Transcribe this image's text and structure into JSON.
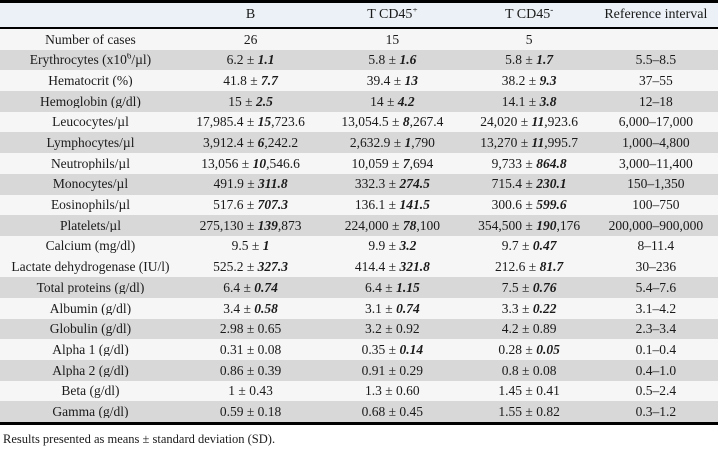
{
  "colors": {
    "header_bg": "#ebf1f6",
    "shaded_row": "#d8d8d8",
    "light_row": "#f6f6f6",
    "rule": "#000000",
    "text": "#1a1a1a"
  },
  "table": {
    "columns": [
      "",
      "B",
      "T CD45^{+}",
      "T CD45^{-}",
      "Reference interval"
    ],
    "rows": [
      {
        "label": "Number of cases",
        "b": "26",
        "t_pos": "15",
        "t_neg": "5",
        "ref": "",
        "shaded": false
      },
      {
        "label": "Erythrocytes (x10^{6}/µl)",
        "b": "6.2 ± *1.1*",
        "t_pos": "5.8 ± *1.6*",
        "t_neg": "5.8 ± *1.7*",
        "ref": "5.5–8.5",
        "shaded": true
      },
      {
        "label": "Hematocrit (%)",
        "b": "41.8 ± *7.7*",
        "t_pos": "39.4 ± *13*",
        "t_neg": "38.2 ± *9.3*",
        "ref": "37–55",
        "shaded": false
      },
      {
        "label": "Hemoglobin (g/dl)",
        "b": "15 ± *2.5*",
        "t_pos": "14 ± *4.2*",
        "t_neg": "14.1 ± *3.8*",
        "ref": "12–18",
        "shaded": true
      },
      {
        "label": "Leucocytes/µl",
        "b": "17,985.4 ± *15*,723.6",
        "t_pos": "13,054.5 ± *8*,267.4",
        "t_neg": "24,020 ± *11*,923.6",
        "ref": "6,000–17,000",
        "shaded": false
      },
      {
        "label": "Lymphocytes/µl",
        "b": "3,912.4 ± *6*,242.2",
        "t_pos": "2,632.9 ± *1*,790",
        "t_neg": "13,270 ± *11*,995.7",
        "ref": "1,000–4,800",
        "shaded": true
      },
      {
        "label": "Neutrophils/µl",
        "b": "13,056 ± *10*,546.6",
        "t_pos": "10,059 ± *7*,694",
        "t_neg": "9,733 ± *864.8*",
        "ref": "3,000–11,400",
        "shaded": false
      },
      {
        "label": "Monocytes/µl",
        "b": "491.9 ± *311.8*",
        "t_pos": "332.3 ± *274.5*",
        "t_neg": "715.4 ± *230.1*",
        "ref": "150–1,350",
        "shaded": true
      },
      {
        "label": "Eosinophils/µl",
        "b": "517.6 ± *707.3*",
        "t_pos": "136.1 ± *141.5*",
        "t_neg": "300.6 ± *599.6*",
        "ref": "100–750",
        "shaded": false
      },
      {
        "label": "Platelets/µl",
        "b": "275,130 ± *139*,873",
        "t_pos": "224,000 ± *78*,100",
        "t_neg": "354,500 ± *190*,176",
        "ref": "200,000–900,000",
        "shaded": true
      },
      {
        "label": "Calcium (mg/dl)",
        "b": "9.5 ± *1*",
        "t_pos": "9.9 ± *3.2*",
        "t_neg": "9.7 ± *0.47*",
        "ref": "8–11.4",
        "shaded": false
      },
      {
        "label": "Lactate dehydrogenase (IU/l)",
        "b": "525.2 ± *327.3*",
        "t_pos": "414.4 ± *321.8*",
        "t_neg": "212.6 ± *81.7*",
        "ref": "30–236",
        "shaded": false
      },
      {
        "label": "Total proteins (g/dl)",
        "b": "6.4 ± *0.74*",
        "t_pos": "6.4 ± *1.15*",
        "t_neg": "7.5 ± *0.76*",
        "ref": "5.4–7.6",
        "shaded": true
      },
      {
        "label": "Albumin (g/dl)",
        "b": "3.4 ± *0.58*",
        "t_pos": "3.1 ± *0.74*",
        "t_neg": "3.3 ± *0.22*",
        "ref": "3.1–4.2",
        "shaded": false
      },
      {
        "label": "Globulin (g/dl)",
        "b": "2.98 ± 0.65",
        "t_pos": "3.2 ± 0.92",
        "t_neg": "4.2 ± 0.89",
        "ref": "2.3–3.4",
        "shaded": true
      },
      {
        "label": "Alpha 1 (g/dl)",
        "b": "0.31 ± 0.08",
        "t_pos": "0.35 ± *0.14*",
        "t_neg": "0.28 ± *0.05*",
        "ref": "0.1–0.4",
        "shaded": false
      },
      {
        "label": "Alpha 2 (g/dl)",
        "b": "0.86 ± 0.39",
        "t_pos": "0.91 ± 0.29",
        "t_neg": "0.8 ± 0.08",
        "ref": "0.4–1.0",
        "shaded": true
      },
      {
        "label": "Beta (g/dl)",
        "b": "1 ± 0.43",
        "t_pos": "1.3 ± 0.60",
        "t_neg": "1.45 ± 0.41",
        "ref": "0.5–2.4",
        "shaded": false
      },
      {
        "label": "Gamma (g/dl)",
        "b": "0.59 ± 0.18",
        "t_pos": "0.68 ± 0.45",
        "t_neg": "1.55 ± 0.82",
        "ref": "0.3–1.2",
        "shaded": true
      }
    ],
    "footnote": "Results presented as means ± standard deviation (SD)."
  }
}
